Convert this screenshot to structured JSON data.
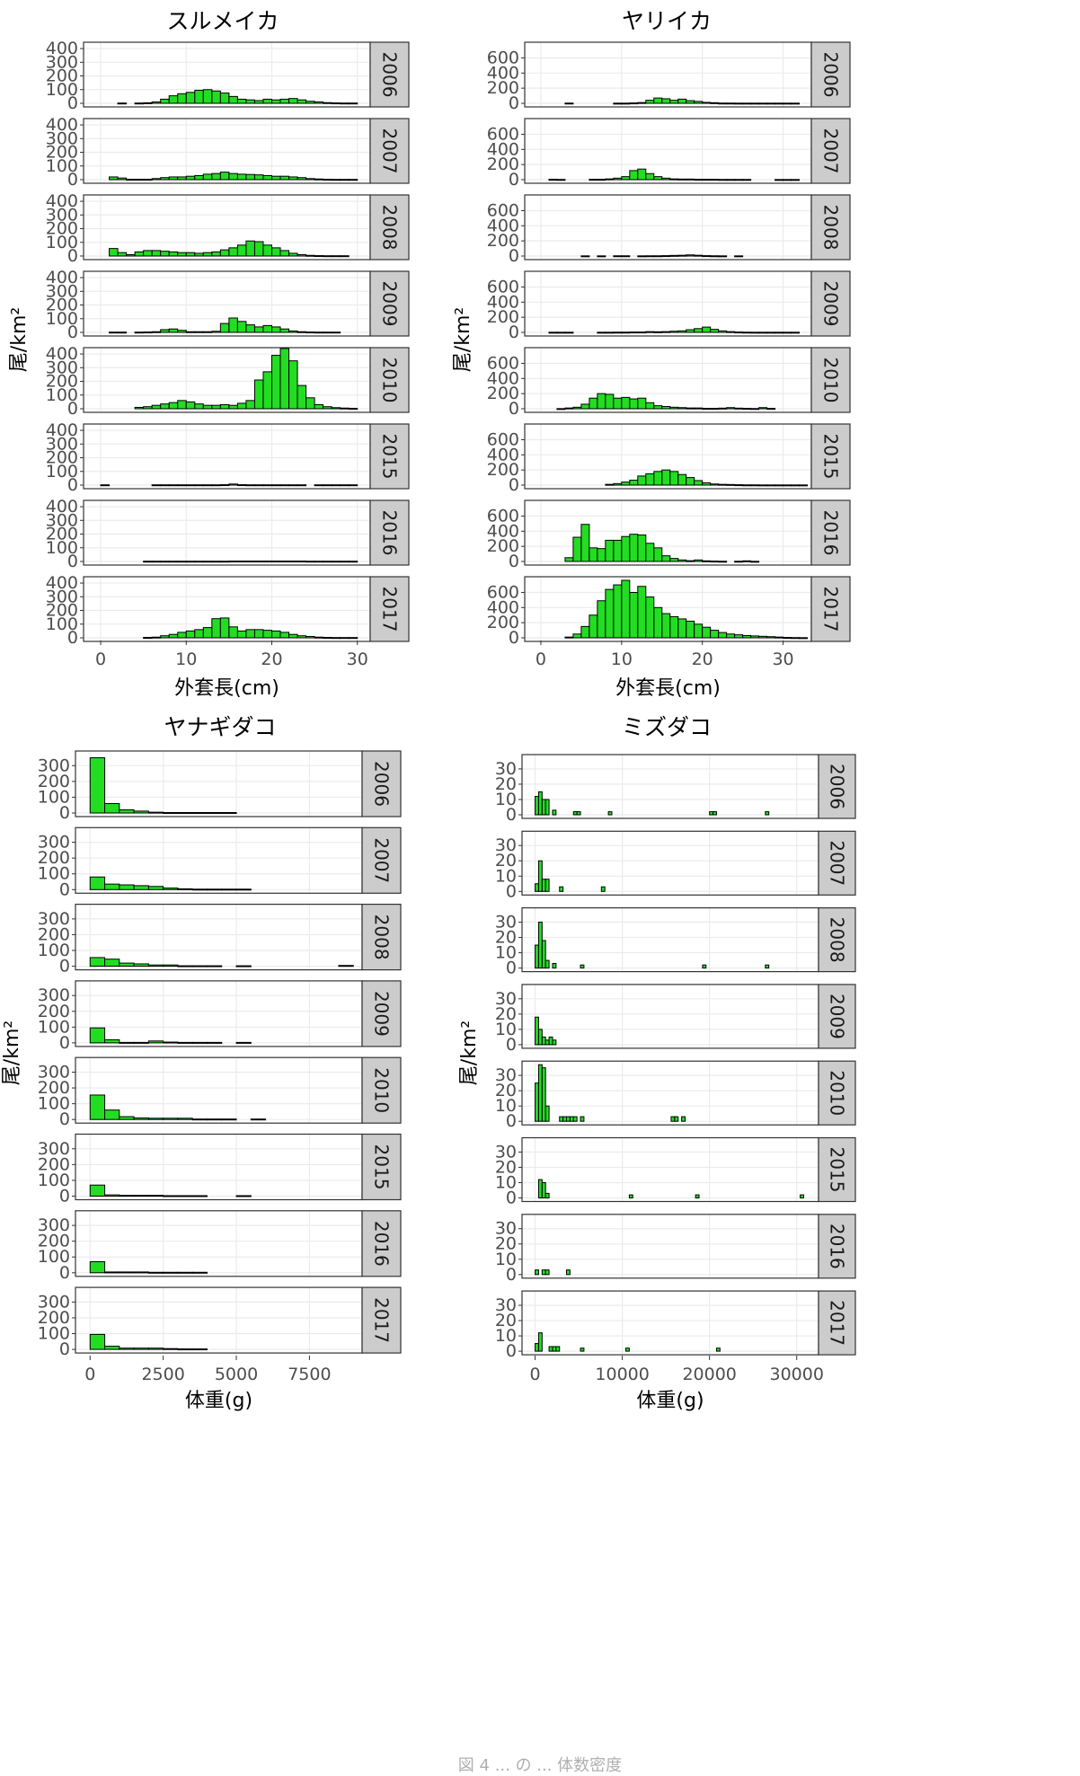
{
  "chart_data": [
    {
      "type": "histogram",
      "title": "スルメイカ",
      "xlabel": "外套長(cm)",
      "ylabel": "尾/km²",
      "xlim": [
        -2,
        31.5
      ],
      "ylim": [
        0,
        420
      ],
      "xticks": [
        0,
        10,
        20,
        30
      ],
      "yticks": [
        0,
        100,
        200,
        300,
        400
      ],
      "bin_width": 1,
      "grid": true,
      "facets": [
        {
          "label": "2006",
          "bins": {
            "2": 2,
            "4": 2,
            "5": 4,
            "6": 10,
            "7": 30,
            "8": 55,
            "9": 70,
            "10": 80,
            "11": 95,
            "12": 100,
            "13": 90,
            "14": 75,
            "15": 50,
            "16": 30,
            "17": 25,
            "18": 20,
            "19": 30,
            "20": 25,
            "21": 30,
            "22": 35,
            "23": 25,
            "24": 15,
            "25": 10,
            "26": 5,
            "27": 3,
            "28": 2,
            "29": 2
          }
        },
        {
          "label": "2007",
          "bins": {
            "1": 20,
            "2": 12,
            "3": 3,
            "4": 3,
            "5": 3,
            "6": 8,
            "7": 15,
            "8": 20,
            "9": 20,
            "10": 25,
            "11": 30,
            "12": 40,
            "13": 45,
            "14": 55,
            "15": 45,
            "16": 40,
            "17": 38,
            "18": 35,
            "19": 30,
            "20": 25,
            "21": 25,
            "22": 20,
            "23": 15,
            "24": 8,
            "25": 5,
            "26": 3,
            "27": 2,
            "28": 2,
            "29": 2
          }
        },
        {
          "label": "2008",
          "bins": {
            "1": 55,
            "2": 25,
            "3": 10,
            "4": 30,
            "5": 40,
            "6": 40,
            "7": 35,
            "8": 30,
            "9": 25,
            "10": 25,
            "11": 20,
            "12": 25,
            "13": 30,
            "14": 45,
            "15": 60,
            "16": 80,
            "17": 110,
            "18": 105,
            "19": 80,
            "20": 60,
            "21": 40,
            "22": 20,
            "23": 10,
            "24": 5,
            "25": 3,
            "26": 2,
            "27": 2,
            "28": 2
          }
        },
        {
          "label": "2009",
          "bins": {
            "1": 2,
            "2": 2,
            "4": 2,
            "5": 3,
            "6": 5,
            "7": 20,
            "8": 25,
            "9": 15,
            "10": 5,
            "11": 5,
            "12": 5,
            "13": 8,
            "14": 65,
            "15": 105,
            "16": 80,
            "17": 55,
            "18": 40,
            "19": 50,
            "20": 40,
            "21": 25,
            "22": 10,
            "23": 5,
            "24": 3,
            "25": 2,
            "26": 2,
            "27": 2
          }
        },
        {
          "label": "2010",
          "bins": {
            "4": 10,
            "5": 15,
            "6": 25,
            "7": 35,
            "8": 45,
            "9": 60,
            "10": 50,
            "11": 35,
            "12": 25,
            "13": 25,
            "14": 30,
            "15": 25,
            "16": 40,
            "17": 60,
            "18": 210,
            "19": 270,
            "20": 390,
            "21": 440,
            "22": 350,
            "23": 170,
            "24": 80,
            "25": 30,
            "26": 15,
            "27": 8,
            "28": 5,
            "29": 3
          }
        },
        {
          "label": "2015",
          "bins": {
            "0": 2,
            "6": 2,
            "7": 2,
            "8": 2,
            "9": 2,
            "10": 2,
            "11": 2,
            "12": 2,
            "13": 2,
            "14": 3,
            "15": 8,
            "16": 3,
            "17": 2,
            "18": 2,
            "19": 2,
            "20": 2,
            "21": 2,
            "22": 2,
            "23": 2,
            "25": 2,
            "26": 2,
            "27": 2,
            "28": 2,
            "29": 2
          }
        },
        {
          "label": "2016",
          "bins": {
            "5": 2,
            "6": 2,
            "7": 2,
            "8": 2,
            "9": 2,
            "10": 2,
            "11": 2,
            "12": 2,
            "13": 2,
            "14": 2,
            "15": 3,
            "16": 3,
            "17": 3,
            "18": 3,
            "19": 3,
            "20": 3,
            "21": 3,
            "22": 3,
            "23": 3,
            "24": 2,
            "25": 2,
            "26": 2,
            "27": 2,
            "28": 2,
            "29": 2
          }
        },
        {
          "label": "2017",
          "bins": {
            "5": 3,
            "6": 5,
            "7": 15,
            "8": 25,
            "9": 40,
            "10": 50,
            "11": 60,
            "12": 75,
            "13": 140,
            "14": 145,
            "15": 80,
            "16": 50,
            "17": 60,
            "18": 60,
            "19": 55,
            "20": 50,
            "21": 40,
            "22": 25,
            "23": 15,
            "24": 10,
            "25": 5,
            "26": 3,
            "27": 2,
            "28": 2,
            "29": 2
          }
        }
      ]
    },
    {
      "type": "histogram",
      "title": "ヤリイカ",
      "xlabel": "外套長(cm)",
      "ylabel": "尾/km²",
      "xlim": [
        -2,
        33.5
      ],
      "ylim": [
        0,
        760
      ],
      "xticks": [
        0,
        10,
        20,
        30
      ],
      "yticks": [
        0,
        200,
        400,
        600
      ],
      "bin_width": 1,
      "grid": true,
      "facets": [
        {
          "label": "2006",
          "bins": {
            "3": 3,
            "9": 2,
            "10": 2,
            "11": 5,
            "12": 10,
            "13": 40,
            "14": 70,
            "15": 60,
            "16": 40,
            "17": 55,
            "18": 35,
            "19": 25,
            "20": 12,
            "21": 8,
            "22": 3,
            "23": 3,
            "24": 2,
            "25": 2,
            "26": 2,
            "27": 2,
            "28": 2,
            "29": 2,
            "30": 2,
            "31": 2
          }
        },
        {
          "label": "2007",
          "bins": {
            "1": 5,
            "2": 3,
            "6": 5,
            "7": 5,
            "8": 10,
            "9": 20,
            "10": 40,
            "11": 120,
            "12": 140,
            "13": 80,
            "14": 40,
            "15": 20,
            "16": 10,
            "17": 8,
            "18": 8,
            "19": 5,
            "20": 5,
            "21": 5,
            "22": 3,
            "23": 3,
            "24": 3,
            "25": 3,
            "29": 2,
            "30": 2,
            "31": 2
          }
        },
        {
          "label": "2008",
          "bins": {
            "5": 2,
            "7": 2,
            "9": 3,
            "10": 3,
            "12": 2,
            "13": 3,
            "14": 3,
            "15": 5,
            "16": 8,
            "17": 10,
            "18": 15,
            "19": 10,
            "20": 5,
            "21": 3,
            "22": 2,
            "24": 2
          }
        },
        {
          "label": "2009",
          "bins": {
            "1": 2,
            "2": 2,
            "3": 2,
            "7": 2,
            "8": 2,
            "9": 3,
            "10": 3,
            "11": 5,
            "12": 5,
            "13": 10,
            "14": 8,
            "15": 10,
            "16": 15,
            "17": 20,
            "18": 35,
            "19": 50,
            "20": 70,
            "21": 40,
            "22": 20,
            "23": 10,
            "24": 5,
            "25": 3,
            "26": 2,
            "27": 2,
            "28": 2,
            "29": 2,
            "30": 2,
            "31": 2
          }
        },
        {
          "label": "2010",
          "bins": {
            "2": 2,
            "3": 10,
            "4": 20,
            "5": 60,
            "6": 140,
            "7": 200,
            "8": 190,
            "9": 140,
            "10": 150,
            "11": 130,
            "12": 140,
            "13": 80,
            "14": 40,
            "15": 30,
            "16": 20,
            "17": 15,
            "18": 10,
            "19": 10,
            "20": 5,
            "21": 5,
            "22": 8,
            "23": 15,
            "24": 8,
            "25": 5,
            "26": 3,
            "27": 15,
            "28": 5
          }
        },
        {
          "label": "2015",
          "bins": {
            "8": 10,
            "9": 20,
            "10": 40,
            "11": 65,
            "12": 120,
            "13": 150,
            "14": 180,
            "15": 200,
            "16": 180,
            "17": 140,
            "18": 100,
            "19": 60,
            "20": 30,
            "21": 15,
            "22": 10,
            "23": 8,
            "24": 5,
            "25": 3,
            "26": 3,
            "27": 2,
            "28": 2,
            "29": 2,
            "30": 2,
            "31": 2,
            "32": 2
          }
        },
        {
          "label": "2016",
          "bins": {
            "3": 50,
            "4": 320,
            "5": 490,
            "6": 180,
            "7": 170,
            "8": 280,
            "9": 280,
            "10": 330,
            "11": 360,
            "12": 350,
            "13": 240,
            "14": 180,
            "15": 75,
            "16": 40,
            "17": 20,
            "18": 10,
            "19": 20,
            "20": 8,
            "21": 5,
            "22": 3,
            "24": 3,
            "25": 8,
            "26": 2
          }
        },
        {
          "label": "2017",
          "bins": {
            "3": 10,
            "4": 50,
            "5": 150,
            "6": 300,
            "7": 490,
            "8": 640,
            "9": 700,
            "10": 760,
            "11": 600,
            "12": 680,
            "13": 540,
            "14": 400,
            "15": 320,
            "16": 280,
            "17": 250,
            "18": 220,
            "19": 180,
            "20": 140,
            "21": 100,
            "22": 70,
            "23": 50,
            "24": 40,
            "25": 30,
            "26": 25,
            "27": 20,
            "28": 15,
            "29": 10,
            "30": 5,
            "31": 3,
            "32": 2
          }
        }
      ]
    },
    {
      "type": "histogram",
      "title": "ヤナギダコ",
      "xlabel": "体重(g)",
      "ylabel": "尾/km²",
      "xlim": [
        -500,
        9300
      ],
      "ylim": [
        0,
        370
      ],
      "xticks": [
        0,
        2500,
        5000,
        7500
      ],
      "yticks": [
        0,
        100,
        200,
        300
      ],
      "bin_width": 500,
      "grid": true,
      "facets": [
        {
          "label": "2006",
          "bins": {
            "0": 350,
            "500": 60,
            "1000": 20,
            "1500": 12,
            "2000": 5,
            "2500": 3,
            "3000": 3,
            "3500": 3,
            "4000": 3,
            "4500": 3
          }
        },
        {
          "label": "2007",
          "bins": {
            "0": 80,
            "500": 35,
            "1000": 30,
            "1500": 25,
            "2000": 20,
            "2500": 10,
            "3000": 5,
            "3500": 3,
            "4000": 3,
            "4500": 3,
            "5000": 3
          }
        },
        {
          "label": "2008",
          "bins": {
            "0": 55,
            "500": 45,
            "1000": 20,
            "1500": 15,
            "2000": 8,
            "2500": 8,
            "3000": 3,
            "3500": 3,
            "4000": 3,
            "5000": 3,
            "8500": 5
          }
        },
        {
          "label": "2009",
          "bins": {
            "0": 95,
            "500": 20,
            "1000": 3,
            "1500": 3,
            "2000": 12,
            "2500": 5,
            "3000": 3,
            "3500": 3,
            "4000": 3,
            "5000": 3
          }
        },
        {
          "label": "2010",
          "bins": {
            "0": 155,
            "500": 60,
            "1000": 18,
            "1500": 10,
            "2000": 8,
            "2500": 8,
            "3000": 8,
            "3500": 3,
            "4000": 3,
            "4500": 3,
            "5500": 3
          }
        },
        {
          "label": "2015",
          "bins": {
            "0": 70,
            "500": 8,
            "1000": 5,
            "1500": 5,
            "2000": 5,
            "2500": 3,
            "3000": 3,
            "3500": 3,
            "5000": 3
          }
        },
        {
          "label": "2016",
          "bins": {
            "0": 70,
            "500": 5,
            "1000": 5,
            "1500": 5,
            "2000": 3,
            "2500": 3,
            "3000": 3,
            "3500": 3
          }
        },
        {
          "label": "2017",
          "bins": {
            "0": 95,
            "500": 20,
            "1000": 8,
            "1500": 8,
            "2000": 8,
            "2500": 5,
            "3000": 3,
            "3500": 3
          }
        }
      ]
    },
    {
      "type": "histogram",
      "title": "ミズダコ",
      "xlabel": "体重(g)",
      "ylabel": "尾/km²",
      "xlim": [
        -1500,
        32500
      ],
      "ylim": [
        0,
        37
      ],
      "xticks": [
        0,
        10000,
        20000,
        30000
      ],
      "yticks": [
        0,
        10,
        20,
        30
      ],
      "bin_width": 400,
      "grid": true,
      "facets": [
        {
          "label": "2006",
          "bins": {
            "0": 12,
            "400": 15,
            "800": 10,
            "1200": 10,
            "2000": 3,
            "4400": 2,
            "4800": 2,
            "8400": 2,
            "20000": 2,
            "20400": 2,
            "26400": 2
          }
        },
        {
          "label": "2007",
          "bins": {
            "0": 5,
            "400": 20,
            "800": 8,
            "1200": 8,
            "2800": 3,
            "7600": 3
          }
        },
        {
          "label": "2008",
          "bins": {
            "0": 15,
            "400": 30,
            "800": 18,
            "1200": 5,
            "2000": 3,
            "5200": 2,
            "19200": 2,
            "26400": 2
          }
        },
        {
          "label": "2009",
          "bins": {
            "0": 18,
            "400": 10,
            "800": 5,
            "1200": 3,
            "1600": 5,
            "2000": 3
          }
        },
        {
          "label": "2010",
          "bins": {
            "0": 25,
            "400": 37,
            "800": 35,
            "1200": 10,
            "2800": 3,
            "3200": 3,
            "3600": 3,
            "4000": 3,
            "4400": 3,
            "5200": 3,
            "15600": 3,
            "16000": 3,
            "16800": 3
          }
        },
        {
          "label": "2015",
          "bins": {
            "400": 12,
            "800": 10,
            "1200": 3,
            "10800": 2,
            "18400": 2,
            "30400": 2
          }
        },
        {
          "label": "2016",
          "bins": {
            "0": 3,
            "800": 3,
            "1200": 3,
            "3600": 3
          }
        },
        {
          "label": "2017",
          "bins": {
            "0": 5,
            "400": 12,
            "1600": 3,
            "2000": 3,
            "2400": 3,
            "5200": 2,
            "10400": 2,
            "20800": 2
          }
        }
      ]
    }
  ],
  "colors": {
    "bar_fill": "#22dd22",
    "bar_stroke": "#000000",
    "strip_fill": "#cccccc",
    "grid": "#ebebeb",
    "border": "#333333"
  },
  "caption": "図 4 ... の ... 体数密度"
}
